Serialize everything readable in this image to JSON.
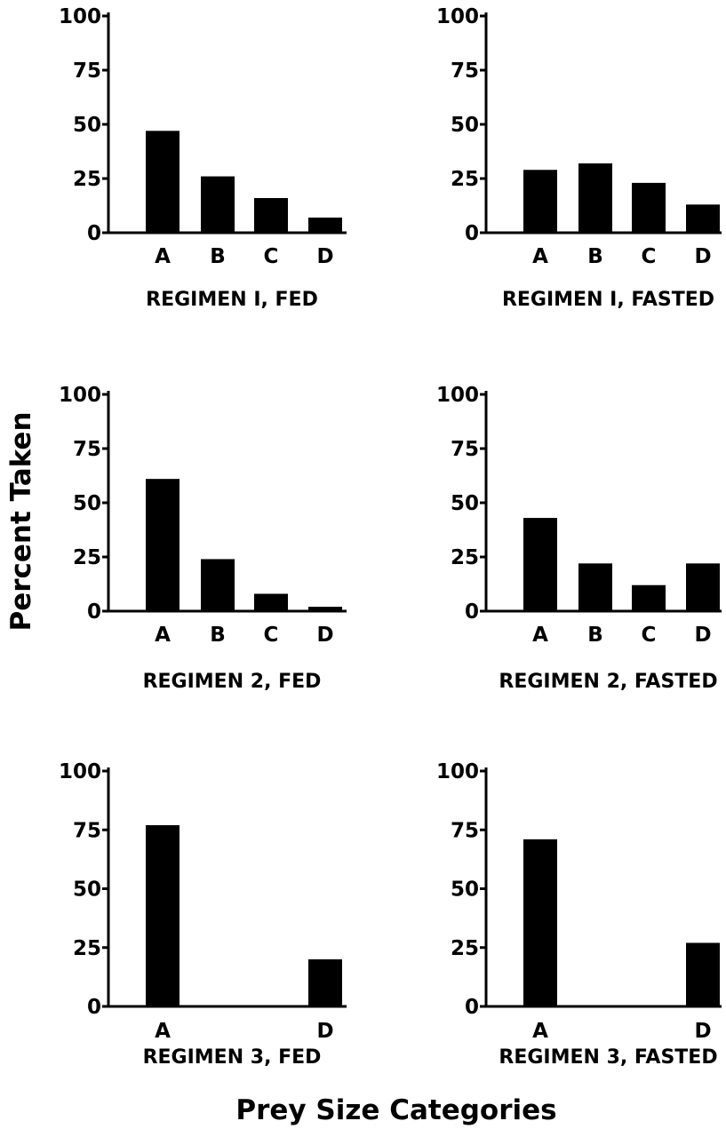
{
  "ylabel": "Percent Taken",
  "xlabel": "Prey Size Categories",
  "chart_data": [
    {
      "type": "bar",
      "title": "REGIMEN I, FED",
      "categories": [
        "A",
        "B",
        "C",
        "D"
      ],
      "values": [
        47,
        26,
        16,
        7
      ],
      "ylim": [
        0,
        100
      ],
      "yticks": [
        "0",
        "25",
        "50",
        "75",
        "100"
      ],
      "color": "#000000"
    },
    {
      "type": "bar",
      "title": "REGIMEN I, FASTED",
      "categories": [
        "A",
        "B",
        "C",
        "D"
      ],
      "values": [
        29,
        32,
        23,
        13
      ],
      "ylim": [
        0,
        100
      ],
      "yticks": [
        "0",
        "25",
        "50",
        "75",
        "100"
      ],
      "color": "#000000"
    },
    {
      "type": "bar",
      "title": "REGIMEN 2, FED",
      "categories": [
        "A",
        "B",
        "C",
        "D"
      ],
      "values": [
        61,
        24,
        8,
        2
      ],
      "ylim": [
        0,
        100
      ],
      "yticks": [
        "0",
        "25",
        "50",
        "75",
        "100"
      ],
      "color": "#000000"
    },
    {
      "type": "bar",
      "title": "REGIMEN 2, FASTED",
      "categories": [
        "A",
        "B",
        "C",
        "D"
      ],
      "values": [
        43,
        22,
        12,
        22
      ],
      "ylim": [
        0,
        100
      ],
      "yticks": [
        "0",
        "25",
        "50",
        "75",
        "100"
      ],
      "color": "#000000"
    },
    {
      "type": "bar",
      "title": "REGIMEN 3, FED",
      "categories": [
        "A",
        "D"
      ],
      "values": [
        77,
        20
      ],
      "ylim": [
        0,
        100
      ],
      "yticks": [
        "0",
        "25",
        "50",
        "75",
        "100"
      ],
      "color": "#000000"
    },
    {
      "type": "bar",
      "title": "REGIMEN 3, FASTED",
      "categories": [
        "A",
        "D"
      ],
      "values": [
        71,
        27
      ],
      "ylim": [
        0,
        100
      ],
      "yticks": [
        "0",
        "25",
        "50",
        "75",
        "100"
      ],
      "color": "#000000"
    }
  ]
}
